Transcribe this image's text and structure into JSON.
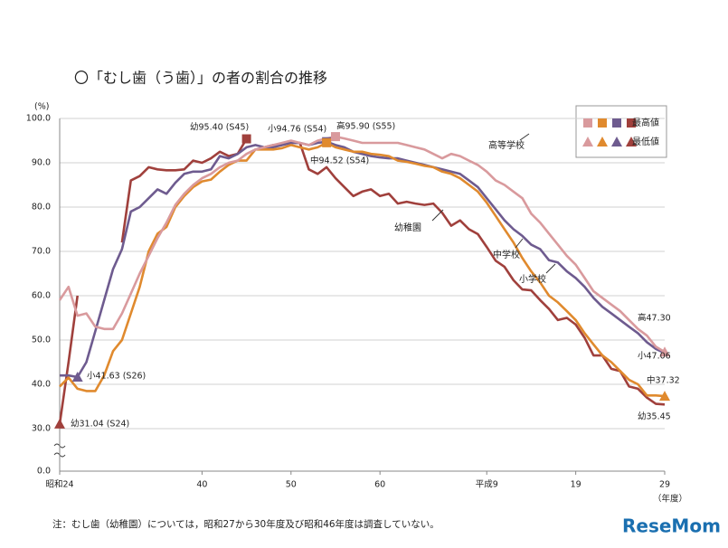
{
  "chart_data": {
    "type": "line",
    "title": "〇「むし歯（う歯）」の者の割合の推移",
    "y_unit": "(%)",
    "x_unit": "（年度）",
    "note": "注：むし歯（幼稚園）については，昭和27から30年度及び昭和46年度は調査していない。",
    "logo": "ReseMom",
    "legend": {
      "max_label": "最高値",
      "min_label": "最低値"
    },
    "x": [
      24,
      25,
      26,
      27,
      28,
      29,
      30,
      31,
      32,
      33,
      34,
      35,
      36,
      37,
      38,
      39,
      40,
      41,
      42,
      43,
      44,
      45,
      46,
      47,
      48,
      49,
      50,
      51,
      52,
      53,
      54,
      55,
      56,
      57,
      58,
      59,
      60,
      61,
      62,
      63,
      64,
      65,
      66,
      67,
      68,
      69,
      70,
      71,
      72,
      73,
      74,
      75,
      76,
      77,
      78,
      79,
      80,
      81,
      82,
      83,
      84,
      85,
      86,
      87,
      88,
      89,
      90,
      91,
      92
    ],
    "xlim": [
      24,
      92
    ],
    "xticks": [
      {
        "value": 24,
        "label": "昭和24"
      },
      40,
      50,
      60,
      {
        "value": 72,
        "label": "平成9"
      },
      {
        "value": 82,
        "label": "19"
      },
      {
        "value": 92,
        "label": "29"
      }
    ],
    "ylim": [
      0,
      100
    ],
    "axis_break": [
      0,
      30
    ],
    "yticks": [
      {
        "value": 0,
        "label": "0.0"
      },
      {
        "value": 30,
        "label": "30.0"
      },
      {
        "value": 40,
        "label": "40.0"
      },
      {
        "value": 50,
        "label": "50.0"
      },
      {
        "value": 60,
        "label": "60.0"
      },
      {
        "value": 70,
        "label": "70.0"
      },
      {
        "value": 80,
        "label": "80.0"
      },
      {
        "value": 90,
        "label": "90.0"
      },
      {
        "value": 100,
        "label": "100.0"
      }
    ],
    "grid": true,
    "series": [
      {
        "name": "幼稚園",
        "color": "#a0403c",
        "values": [
          31.04,
          45,
          60,
          null,
          null,
          null,
          null,
          72,
          86,
          87,
          89,
          88.5,
          88.3,
          88.3,
          88.5,
          90.5,
          90,
          91,
          92.5,
          91.5,
          92,
          95.4,
          null,
          93.5,
          94,
          94,
          94.5,
          94.5,
          88.5,
          87.5,
          89,
          86.5,
          84.5,
          82.5,
          83.5,
          84,
          82.5,
          83,
          80.8,
          81.2,
          80.8,
          80.5,
          80.8,
          78.7,
          75.8,
          77,
          75,
          73.9,
          71,
          67.9,
          66.5,
          63.5,
          61.4,
          61.2,
          59,
          57,
          54.5,
          55,
          53.5,
          50.5,
          46.5,
          46.5,
          43.5,
          43,
          39.5,
          39,
          37,
          35.6,
          35.45
        ]
      },
      {
        "name": "小学校",
        "color": "#6e5b8f",
        "values": [
          42,
          42,
          41.63,
          45,
          52,
          59,
          66,
          70.5,
          79,
          80,
          82,
          84,
          83,
          85.5,
          87.5,
          88,
          88,
          88.5,
          91.5,
          91,
          92,
          93.5,
          94,
          93.5,
          93.5,
          94,
          94.5,
          94.5,
          94,
          94.5,
          94.76,
          94,
          93.5,
          92.5,
          92,
          91.5,
          91.2,
          91,
          91,
          90.5,
          90,
          89.5,
          89,
          88.5,
          88,
          87.5,
          86,
          84.5,
          82,
          79.5,
          77,
          75,
          73.5,
          71.5,
          70.5,
          68,
          67.5,
          65.5,
          64,
          62,
          59.5,
          57.5,
          56,
          54.5,
          53,
          51.5,
          49.5,
          48,
          47.06
        ]
      },
      {
        "name": "中学校",
        "color": "#e08a2e",
        "values": [
          39.5,
          41.5,
          39,
          38.5,
          38.5,
          42,
          47.5,
          50,
          56,
          62,
          70,
          74,
          75.5,
          80,
          82.5,
          84.5,
          85.8,
          86.2,
          88,
          89.5,
          90.5,
          90.5,
          93,
          93,
          93,
          93.3,
          94,
          93.5,
          93,
          93.5,
          94.52,
          93.5,
          93,
          92.5,
          92.5,
          92,
          91.8,
          91.5,
          90.5,
          90.2,
          89.8,
          89.3,
          89,
          88,
          87.5,
          86.5,
          85,
          83.5,
          81,
          78,
          75,
          72,
          68.5,
          65.5,
          63,
          60,
          58.5,
          56.5,
          54.5,
          51.5,
          49,
          46.5,
          45,
          43,
          41,
          40,
          37.5,
          37.5,
          37.32
        ]
      },
      {
        "name": "高等学校",
        "color": "#d99a9d",
        "values": [
          59,
          62,
          55.5,
          56,
          53,
          52.5,
          52.5,
          56,
          60.5,
          65,
          69,
          73,
          76.5,
          80.5,
          83,
          85,
          86.5,
          87.5,
          89,
          90,
          90.5,
          92,
          93,
          93.5,
          94,
          94.5,
          95,
          94.5,
          94,
          95,
          95.5,
          95.9,
          95.5,
          95,
          94.5,
          94.5,
          94.5,
          94.5,
          94.5,
          94,
          93.5,
          93,
          92,
          91,
          92,
          91.5,
          90.5,
          89.5,
          88,
          86,
          85,
          83.5,
          82,
          78.5,
          76.5,
          74,
          71.5,
          69,
          67,
          64,
          61,
          59.5,
          58,
          56.5,
          54.5,
          52.5,
          51,
          48.5,
          47.3
        ]
      }
    ],
    "annotations": [
      "幼95.40 (S45)",
      "小94.76 (S54)",
      "高95.90 (S55)",
      "中94.52 (S54)",
      "小41.63 (S26)",
      "幼31.04 (S24)",
      "高47.30",
      "小47.06",
      "中37.32",
      "幼35.45"
    ]
  }
}
